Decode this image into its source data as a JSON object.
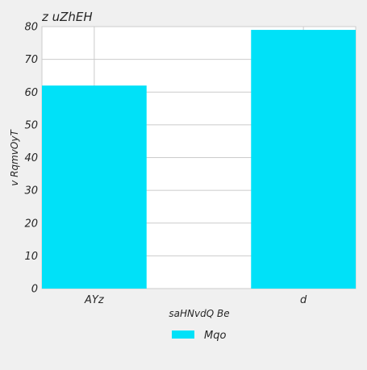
{
  "chart_data": {
    "type": "bar",
    "title": "z uZhEH",
    "xlabel": "saHNvdQ Be",
    "ylabel": "v RqmvOyT",
    "categories": [
      "AYz",
      "d"
    ],
    "series": [
      {
        "name": "Mqo",
        "values": [
          62,
          79
        ],
        "color": "#00e1f8"
      }
    ],
    "ylim": [
      0,
      80
    ],
    "yticks": [
      0,
      10,
      20,
      30,
      40,
      50,
      60,
      70,
      80
    ],
    "grid": true,
    "legend_position": "bottom-center",
    "colors": {
      "background": "#f0f0f0",
      "plot_background": "#ffffff",
      "grid": "#cbcbcb"
    }
  }
}
